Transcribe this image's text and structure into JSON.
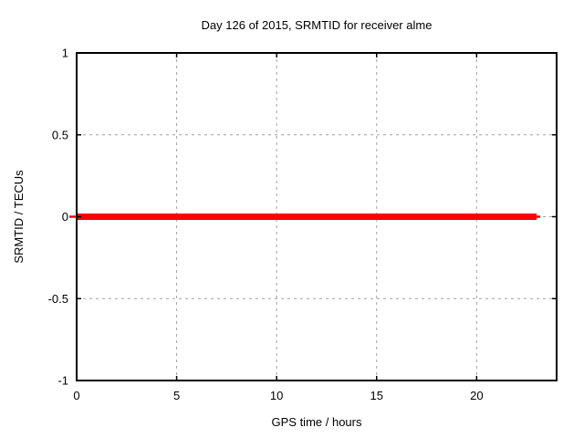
{
  "window": {
    "background": "#ffffff"
  },
  "chart_data": {
    "type": "line",
    "title": "Day 126 of 2015, SRMTID for receiver alme",
    "xlabel": "GPS time / hours",
    "ylabel": "SRMTID / TECUs",
    "xlim": [
      0,
      24
    ],
    "ylim": [
      -1,
      1
    ],
    "xticks": [
      0,
      5,
      10,
      15,
      20
    ],
    "xtick_labels": [
      "0",
      "5",
      "10",
      "15",
      "20"
    ],
    "yticks": [
      -1,
      -0.5,
      0,
      0.5,
      1
    ],
    "ytick_labels": [
      "-1",
      "-0.5",
      "0",
      "0.5",
      "1"
    ],
    "grid": true,
    "legend": "none",
    "series": [
      {
        "name": "SRMTID",
        "color": "#ff0000",
        "linewidth": 7,
        "x": [
          0,
          23
        ],
        "y": [
          0,
          0
        ]
      }
    ],
    "colors": {
      "grid": "#a0a0a0",
      "axis": "#000000",
      "text": "#000000",
      "background": "#ffffff"
    }
  }
}
